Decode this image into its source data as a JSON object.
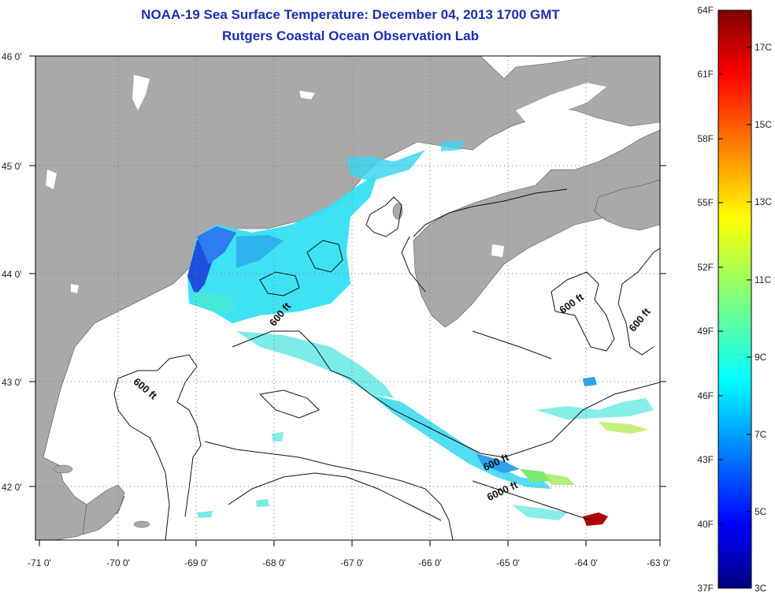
{
  "title": "NOAA-19 Sea Surface Temperature:  December 04, 2013 1700 GMT",
  "subtitle": "Rutgers Coastal Ocean Observation Lab",
  "map": {
    "lon_range": [
      -71,
      -63
    ],
    "lat_range": [
      41.5,
      46
    ],
    "lon_labels": [
      "-71 0'",
      "-70 0'",
      "-69 0'",
      "-68 0'",
      "-67 0'",
      "-66 0'",
      "-65 0'",
      "-64 0'",
      "-63 0'"
    ],
    "lat_labels": [
      "46 0'",
      "45 0'",
      "44 0'",
      "43 0'",
      "42 0'"
    ],
    "land_color": "#a9a9a9",
    "water_color": "#ffffff",
    "contour_labels": [
      "600 ft",
      "600 ft",
      "600 ft",
      "600 ft",
      "600 ft",
      "6000 ft"
    ]
  },
  "colorbar": {
    "top_color": "#7f0000",
    "bottom_color": "#00007f",
    "fahrenheit_labels": [
      "64F",
      "61F",
      "58F",
      "55F",
      "52F",
      "49F",
      "46F",
      "43F",
      "40F",
      "37F"
    ],
    "celsius_labels": [
      "17C",
      "15C",
      "13C",
      "11C",
      "9C",
      "7C",
      "5C",
      "3C"
    ]
  }
}
